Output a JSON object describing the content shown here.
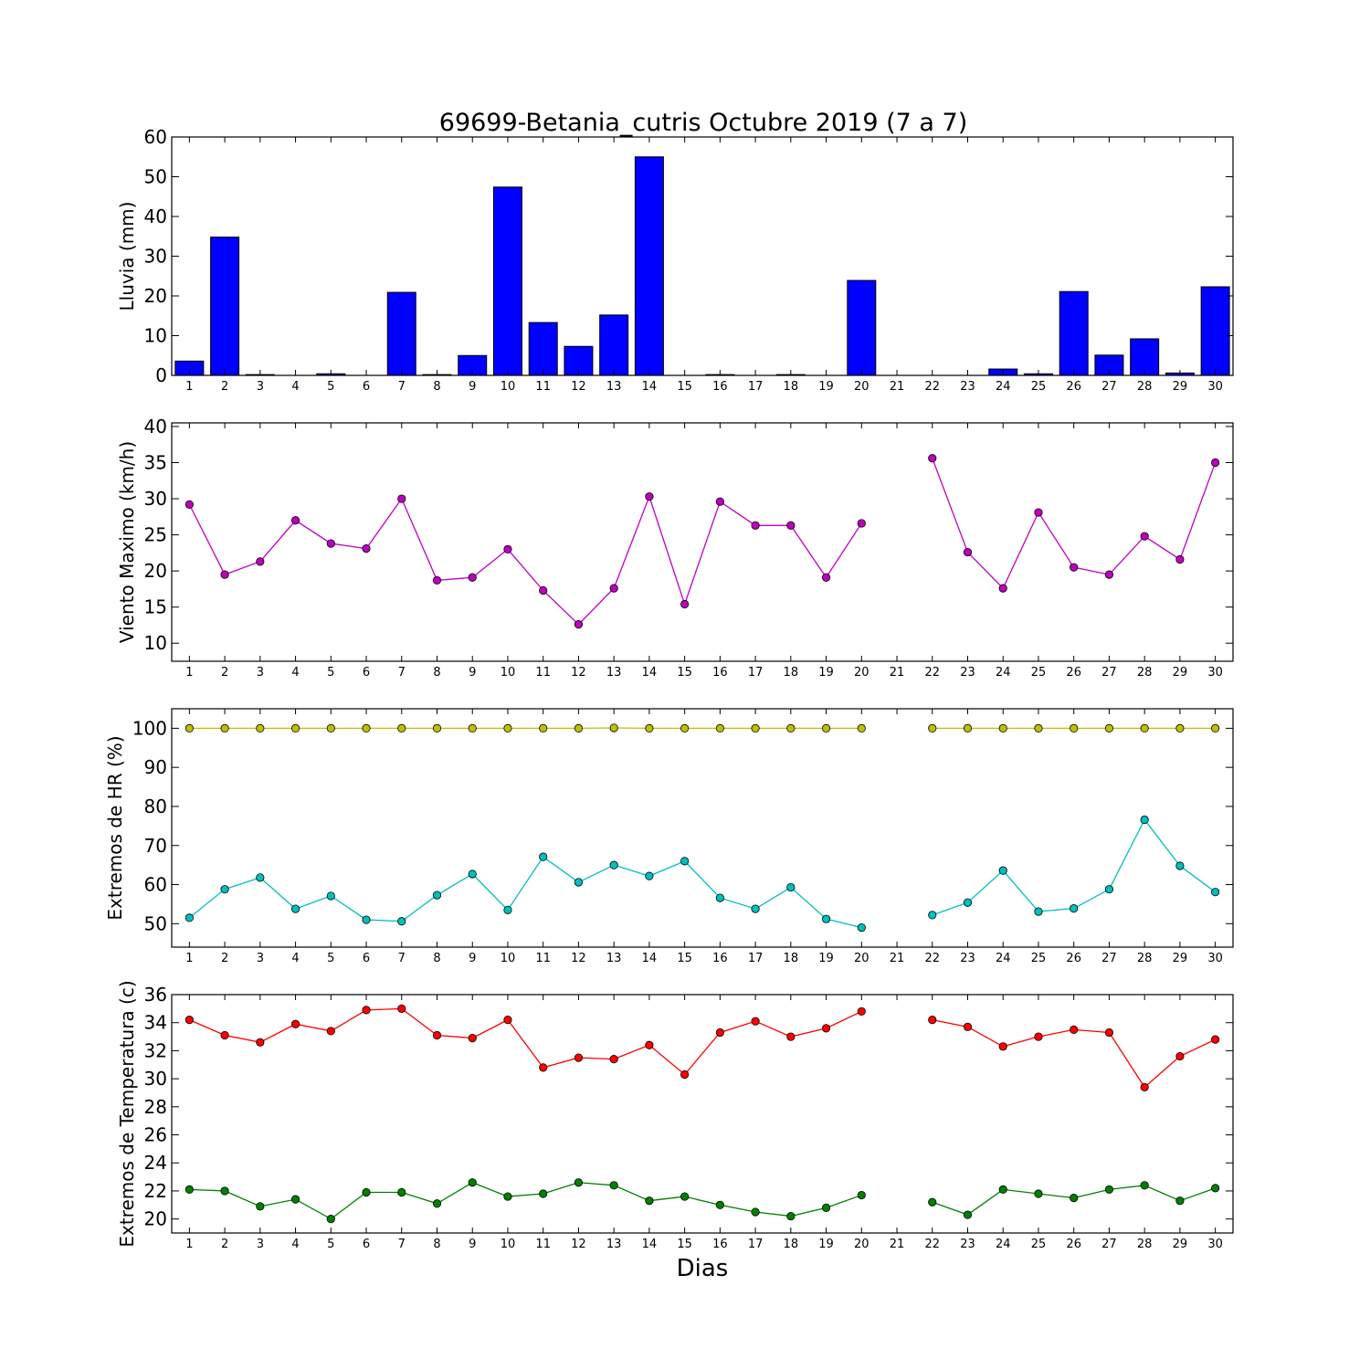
{
  "title": "69699-Betania_cutris Octubre 2019  (7 a 7)",
  "xlabel": "Dias",
  "days": [
    1,
    2,
    3,
    4,
    5,
    6,
    7,
    8,
    9,
    10,
    11,
    12,
    13,
    14,
    15,
    16,
    17,
    18,
    19,
    20,
    21,
    22,
    23,
    24,
    25,
    26,
    27,
    28,
    29,
    30
  ],
  "chart_data": [
    {
      "type": "bar",
      "ylabel": "Lluvia (mm)",
      "ylim": [
        0,
        60
      ],
      "yticks": [
        0,
        10,
        20,
        30,
        40,
        50,
        60
      ],
      "categories": [
        1,
        2,
        3,
        4,
        5,
        6,
        7,
        8,
        9,
        10,
        11,
        12,
        13,
        14,
        15,
        16,
        17,
        18,
        19,
        20,
        21,
        22,
        23,
        24,
        25,
        26,
        27,
        28,
        29,
        30
      ],
      "series": [
        {
          "color": "#0000ff",
          "values": [
            3.6,
            34.8,
            0.2,
            0.0,
            0.4,
            0.0,
            20.9,
            0.2,
            5.0,
            47.4,
            13.3,
            7.3,
            15.2,
            55.0,
            0.0,
            0.2,
            0.0,
            0.2,
            0.0,
            23.9,
            0.0,
            0.0,
            0.0,
            1.6,
            0.4,
            21.1,
            5.1,
            9.2,
            0.6,
            22.3
          ]
        }
      ]
    },
    {
      "type": "line",
      "ylabel": "Viento Maximo (km/h)",
      "ylim": [
        7.5,
        40.5
      ],
      "yticks": [
        10,
        15,
        20,
        25,
        30,
        35,
        40
      ],
      "x": [
        1,
        2,
        3,
        4,
        5,
        6,
        7,
        8,
        9,
        10,
        11,
        12,
        13,
        14,
        15,
        16,
        17,
        18,
        19,
        20,
        21,
        22,
        23,
        24,
        25,
        26,
        27,
        28,
        29,
        30
      ],
      "series": [
        {
          "color": "#bf00bf",
          "values": [
            29.2,
            19.5,
            21.3,
            27.0,
            23.8,
            23.1,
            30.0,
            18.7,
            19.1,
            23.0,
            17.3,
            12.6,
            17.6,
            30.3,
            15.4,
            29.6,
            26.3,
            26.3,
            19.1,
            26.6,
            null,
            35.6,
            22.6,
            17.6,
            28.1,
            20.5,
            19.5,
            24.8,
            21.6,
            35.0
          ]
        }
      ]
    },
    {
      "type": "line",
      "ylabel": "Extremos de HR (%)",
      "ylim": [
        44,
        105
      ],
      "yticks": [
        50,
        60,
        70,
        80,
        90,
        100
      ],
      "x": [
        1,
        2,
        3,
        4,
        5,
        6,
        7,
        8,
        9,
        10,
        11,
        12,
        13,
        14,
        15,
        16,
        17,
        18,
        19,
        20,
        21,
        22,
        23,
        24,
        25,
        26,
        27,
        28,
        29,
        30
      ],
      "series": [
        {
          "color": "#bfbf00",
          "values": [
            100,
            100,
            100,
            100,
            100,
            100,
            100,
            100,
            100,
            100,
            100,
            100,
            100.1,
            100,
            100,
            100,
            100,
            100,
            100,
            100,
            null,
            100,
            100,
            100,
            100,
            100,
            100,
            100,
            100,
            100
          ]
        },
        {
          "color": "#00bfbf",
          "values": [
            51.5,
            58.8,
            61.8,
            53.8,
            57.1,
            51.0,
            50.6,
            57.3,
            62.7,
            53.5,
            67.1,
            60.6,
            65.0,
            62.2,
            66.0,
            56.6,
            53.8,
            59.3,
            51.2,
            49.0,
            null,
            52.2,
            55.4,
            63.6,
            53.1,
            53.9,
            58.8,
            76.6,
            64.8,
            58.1
          ]
        }
      ]
    },
    {
      "type": "line",
      "ylabel": "Extremos de Temperatura (c)",
      "ylim": [
        19.0,
        36.0
      ],
      "yticks": [
        20,
        22,
        24,
        26,
        28,
        30,
        32,
        34,
        36
      ],
      "x": [
        1,
        2,
        3,
        4,
        5,
        6,
        7,
        8,
        9,
        10,
        11,
        12,
        13,
        14,
        15,
        16,
        17,
        18,
        19,
        20,
        21,
        22,
        23,
        24,
        25,
        26,
        27,
        28,
        29,
        30
      ],
      "series": [
        {
          "color": "#ff0000",
          "values": [
            34.2,
            33.1,
            32.6,
            33.9,
            33.4,
            34.9,
            35.0,
            33.1,
            32.9,
            34.2,
            30.8,
            31.5,
            31.4,
            32.4,
            30.3,
            33.3,
            34.1,
            33.0,
            33.6,
            34.8,
            null,
            34.2,
            33.7,
            32.3,
            33.0,
            33.5,
            33.3,
            29.4,
            31.6,
            32.8
          ]
        },
        {
          "color": "#008000",
          "values": [
            22.1,
            22.0,
            20.9,
            21.4,
            20.0,
            21.9,
            21.9,
            21.1,
            22.6,
            21.6,
            21.8,
            22.6,
            22.4,
            21.3,
            21.6,
            21.0,
            20.5,
            20.2,
            20.8,
            21.7,
            null,
            21.2,
            20.3,
            22.1,
            21.8,
            21.5,
            22.1,
            22.4,
            21.3,
            22.2
          ]
        }
      ]
    }
  ]
}
